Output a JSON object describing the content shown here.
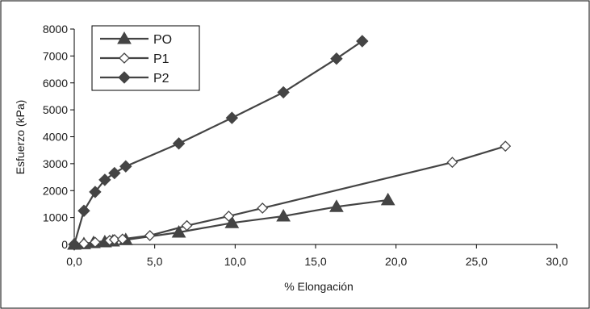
{
  "chart_data": {
    "type": "line",
    "title": "",
    "xlabel": "% Elongación",
    "ylabel": "Esfuerzo (kPa)",
    "xlim": [
      0,
      30
    ],
    "ylim": [
      0,
      8000
    ],
    "x_ticks": [
      "0,0",
      "5,0",
      "10,0",
      "15,0",
      "20,0",
      "25,0",
      "30,0"
    ],
    "x_tick_values": [
      0,
      5,
      10,
      15,
      20,
      25,
      30
    ],
    "y_ticks": [
      "0",
      "1000",
      "2000",
      "3000",
      "4000",
      "5000",
      "6000",
      "7000",
      "8000"
    ],
    "y_tick_values": [
      0,
      1000,
      2000,
      3000,
      4000,
      5000,
      6000,
      7000,
      8000
    ],
    "grid": false,
    "legend_position": "top-left",
    "series": [
      {
        "name": "PO",
        "marker": "triangle",
        "color": "#444444",
        "points": [
          [
            0,
            0
          ],
          [
            0.6,
            20
          ],
          [
            1.2,
            60
          ],
          [
            1.9,
            90
          ],
          [
            2.4,
            120
          ],
          [
            3.2,
            170
          ],
          [
            6.5,
            450
          ],
          [
            9.8,
            800
          ],
          [
            13.0,
            1050
          ],
          [
            16.3,
            1400
          ],
          [
            19.5,
            1650
          ]
        ]
      },
      {
        "name": "P1",
        "marker": "diamond-open",
        "color": "#444444",
        "points": [
          [
            0,
            0
          ],
          [
            0.6,
            30
          ],
          [
            1.3,
            80
          ],
          [
            2.2,
            150
          ],
          [
            2.5,
            180
          ],
          [
            3.0,
            200
          ],
          [
            4.7,
            330
          ],
          [
            7.0,
            700
          ],
          [
            9.6,
            1050
          ],
          [
            11.7,
            1350
          ],
          [
            23.5,
            3050
          ],
          [
            26.8,
            3650
          ]
        ]
      },
      {
        "name": "P2",
        "marker": "diamond-filled",
        "color": "#444444",
        "points": [
          [
            0,
            0
          ],
          [
            0.6,
            1250
          ],
          [
            1.3,
            1950
          ],
          [
            1.9,
            2400
          ],
          [
            2.5,
            2650
          ],
          [
            3.2,
            2900
          ],
          [
            6.5,
            3750
          ],
          [
            9.8,
            4700
          ],
          [
            13.0,
            5650
          ],
          [
            16.3,
            6900
          ],
          [
            17.9,
            7550
          ]
        ]
      }
    ]
  }
}
